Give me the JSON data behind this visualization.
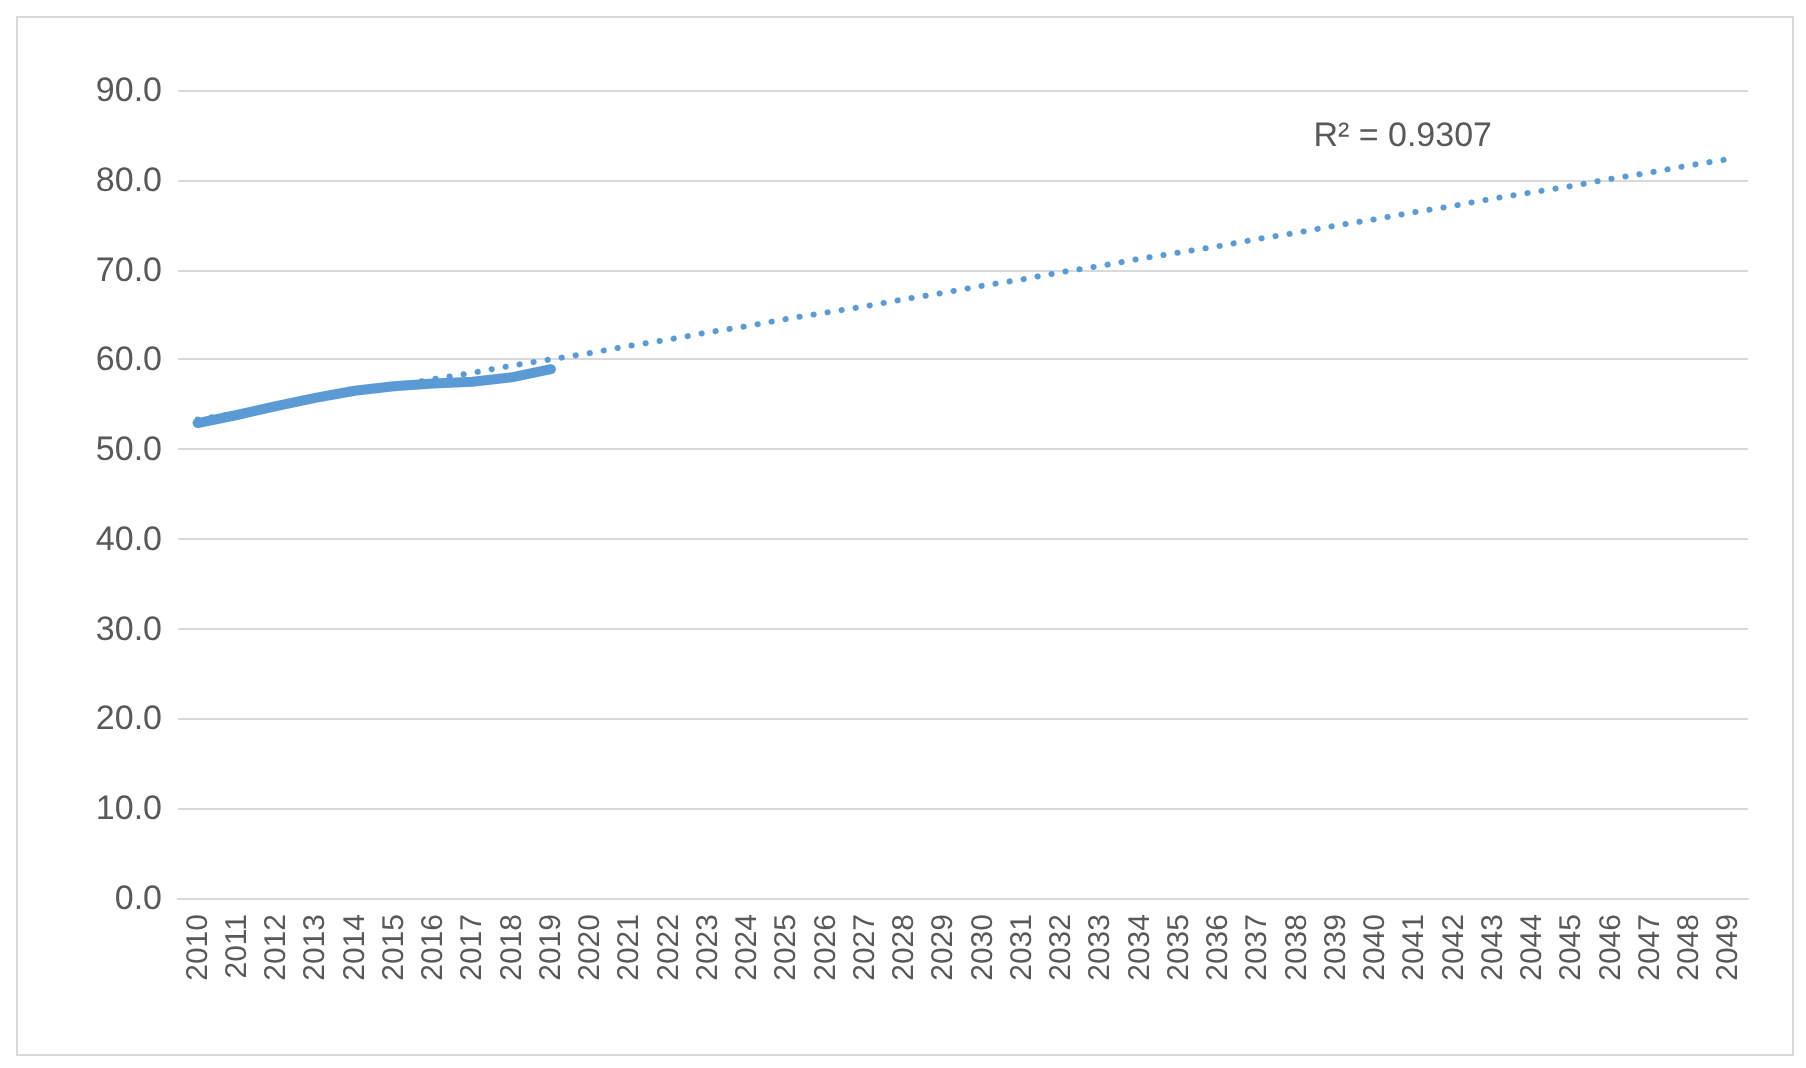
{
  "chart_data": {
    "type": "line",
    "categories": [
      "2010",
      "2011",
      "2012",
      "2013",
      "2014",
      "2015",
      "2016",
      "2017",
      "2018",
      "2019",
      "2020",
      "2021",
      "2022",
      "2023",
      "2024",
      "2025",
      "2026",
      "2027",
      "2028",
      "2029",
      "2030",
      "2031",
      "2032",
      "2033",
      "2034",
      "2035",
      "2036",
      "2037",
      "2038",
      "2039",
      "2040",
      "2041",
      "2042",
      "2043",
      "2044",
      "2045",
      "2046",
      "2047",
      "2048",
      "2049"
    ],
    "series": [
      {
        "color": "#5b9bd5",
        "values": [
          52.9,
          53.8,
          54.8,
          55.7,
          56.5,
          57.0,
          57.3,
          57.5,
          58.0,
          58.9,
          null,
          null,
          null,
          null,
          null,
          null,
          null,
          null,
          null,
          null,
          null,
          null,
          null,
          null,
          null,
          null,
          null,
          null,
          null,
          null,
          null,
          null,
          null,
          null,
          null,
          null,
          null,
          null,
          null,
          null
        ],
        "line_style": "solid"
      },
      {
        "color": "#5b9bd5",
        "values": [
          53.3,
          54.0,
          54.8,
          55.5,
          56.3,
          57.0,
          57.8,
          58.5,
          59.3,
          60.0,
          60.7,
          61.5,
          62.2,
          63.0,
          63.7,
          64.5,
          65.2,
          65.9,
          66.7,
          67.4,
          68.2,
          68.9,
          69.7,
          70.4,
          71.2,
          71.9,
          72.6,
          73.4,
          74.1,
          74.9,
          75.6,
          76.4,
          77.1,
          77.9,
          78.6,
          79.3,
          80.1,
          80.8,
          81.6,
          82.3
        ],
        "line_style": "dotted"
      }
    ],
    "ylim": [
      0,
      90
    ],
    "yticks": [
      {
        "value": 0,
        "label": "0.0"
      },
      {
        "value": 10,
        "label": "10.0"
      },
      {
        "value": 20,
        "label": "20.0"
      },
      {
        "value": 30,
        "label": "30.0"
      },
      {
        "value": 40,
        "label": "40.0"
      },
      {
        "value": 50,
        "label": "50.0"
      },
      {
        "value": 60,
        "label": "60.0"
      },
      {
        "value": 70,
        "label": "70.0"
      },
      {
        "value": 80,
        "label": "80.0"
      },
      {
        "value": 90,
        "label": "90.0"
      }
    ],
    "grid": "y",
    "marker": "none",
    "annotations": [
      "R² = 0.9307"
    ]
  }
}
